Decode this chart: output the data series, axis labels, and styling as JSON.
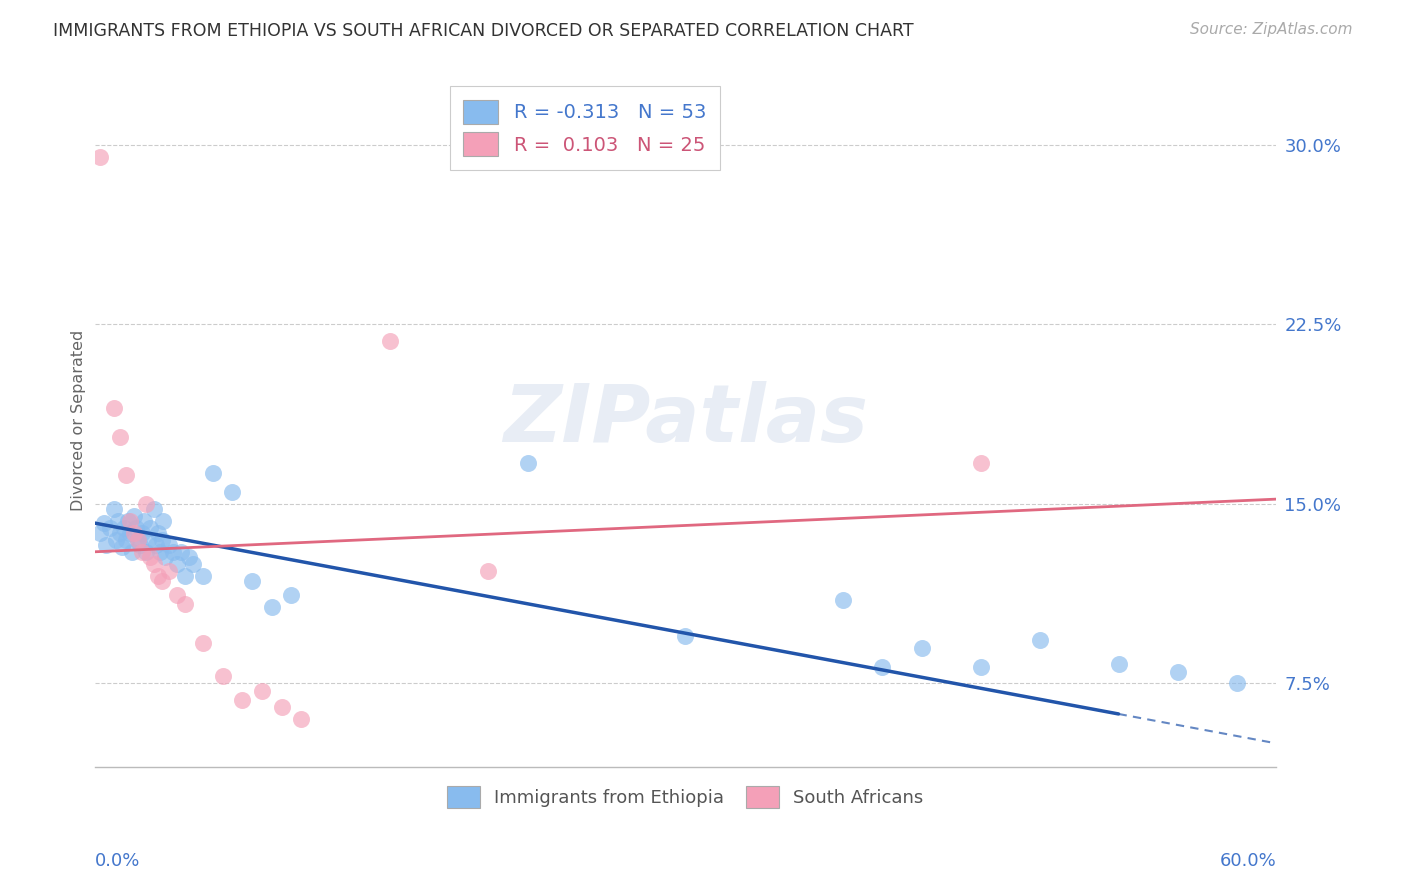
{
  "title": "IMMIGRANTS FROM ETHIOPIA VS SOUTH AFRICAN DIVORCED OR SEPARATED CORRELATION CHART",
  "source": "Source: ZipAtlas.com",
  "ylabel": "Divorced or Separated",
  "xlim": [
    0.0,
    0.6
  ],
  "ylim": [
    0.04,
    0.33
  ],
  "yticks": [
    0.075,
    0.15,
    0.225,
    0.3
  ],
  "ytick_labels": [
    "7.5%",
    "15.0%",
    "22.5%",
    "30.0%"
  ],
  "blue_color": "#88bbee",
  "pink_color": "#f4a0b8",
  "blue_line_color": "#2255aa",
  "pink_line_color": "#e06880",
  "legend_r1": "R = -0.313   N = 53",
  "legend_r2": "R =  0.103   N = 25",
  "legend_color1": "#4477cc",
  "legend_color2": "#cc5577",
  "watermark": "ZIPatlas",
  "blue_dots": [
    [
      0.003,
      0.138
    ],
    [
      0.005,
      0.142
    ],
    [
      0.006,
      0.133
    ],
    [
      0.008,
      0.14
    ],
    [
      0.01,
      0.148
    ],
    [
      0.011,
      0.135
    ],
    [
      0.012,
      0.143
    ],
    [
      0.013,
      0.138
    ],
    [
      0.014,
      0.132
    ],
    [
      0.015,
      0.14
    ],
    [
      0.016,
      0.135
    ],
    [
      0.017,
      0.143
    ],
    [
      0.018,
      0.138
    ],
    [
      0.019,
      0.13
    ],
    [
      0.02,
      0.145
    ],
    [
      0.021,
      0.14
    ],
    [
      0.022,
      0.135
    ],
    [
      0.023,
      0.133
    ],
    [
      0.024,
      0.138
    ],
    [
      0.025,
      0.143
    ],
    [
      0.026,
      0.13
    ],
    [
      0.027,
      0.135
    ],
    [
      0.028,
      0.14
    ],
    [
      0.03,
      0.148
    ],
    [
      0.031,
      0.133
    ],
    [
      0.032,
      0.138
    ],
    [
      0.033,
      0.13
    ],
    [
      0.034,
      0.135
    ],
    [
      0.035,
      0.143
    ],
    [
      0.036,
      0.128
    ],
    [
      0.038,
      0.133
    ],
    [
      0.04,
      0.13
    ],
    [
      0.042,
      0.125
    ],
    [
      0.044,
      0.13
    ],
    [
      0.046,
      0.12
    ],
    [
      0.048,
      0.128
    ],
    [
      0.05,
      0.125
    ],
    [
      0.055,
      0.12
    ],
    [
      0.06,
      0.163
    ],
    [
      0.07,
      0.155
    ],
    [
      0.08,
      0.118
    ],
    [
      0.09,
      0.107
    ],
    [
      0.1,
      0.112
    ],
    [
      0.22,
      0.167
    ],
    [
      0.3,
      0.095
    ],
    [
      0.38,
      0.11
    ],
    [
      0.4,
      0.082
    ],
    [
      0.42,
      0.09
    ],
    [
      0.45,
      0.082
    ],
    [
      0.48,
      0.093
    ],
    [
      0.52,
      0.083
    ],
    [
      0.55,
      0.08
    ],
    [
      0.58,
      0.075
    ]
  ],
  "pink_dots": [
    [
      0.003,
      0.295
    ],
    [
      0.01,
      0.19
    ],
    [
      0.013,
      0.178
    ],
    [
      0.016,
      0.162
    ],
    [
      0.018,
      0.143
    ],
    [
      0.02,
      0.138
    ],
    [
      0.022,
      0.135
    ],
    [
      0.024,
      0.13
    ],
    [
      0.026,
      0.15
    ],
    [
      0.028,
      0.128
    ],
    [
      0.03,
      0.125
    ],
    [
      0.032,
      0.12
    ],
    [
      0.034,
      0.118
    ],
    [
      0.038,
      0.122
    ],
    [
      0.042,
      0.112
    ],
    [
      0.046,
      0.108
    ],
    [
      0.055,
      0.092
    ],
    [
      0.065,
      0.078
    ],
    [
      0.075,
      0.068
    ],
    [
      0.085,
      0.072
    ],
    [
      0.095,
      0.065
    ],
    [
      0.105,
      0.06
    ],
    [
      0.15,
      0.218
    ],
    [
      0.2,
      0.122
    ],
    [
      0.45,
      0.167
    ]
  ],
  "blue_line": {
    "x0": 0.0,
    "y0": 0.142,
    "x1": 0.6,
    "y1": 0.05,
    "solid_to": 0.52
  },
  "pink_line": {
    "x0": 0.0,
    "y0": 0.13,
    "x1": 0.6,
    "y1": 0.152
  }
}
